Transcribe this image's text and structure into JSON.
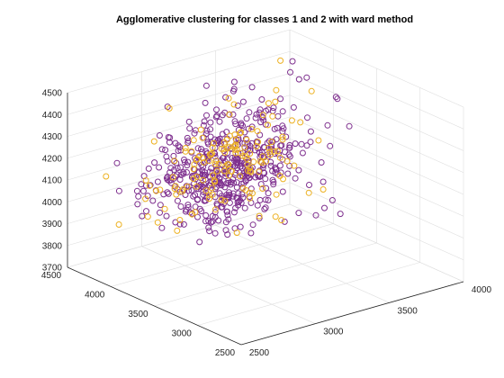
{
  "chart_data": {
    "type": "scatter",
    "dimensions": 3,
    "title": "Agglomerative clustering for classes 1 and 2 with ward method",
    "xlabel": "",
    "ylabel": "",
    "zlabel": "",
    "xlim": [
      2500,
      4000
    ],
    "ylim": [
      2500,
      4500
    ],
    "zlim": [
      3700,
      4500
    ],
    "xticks": [
      "2500",
      "3000",
      "3500",
      "4000"
    ],
    "yticks": [
      "2500",
      "3000",
      "3500",
      "4000",
      "4500"
    ],
    "zticks": [
      "3700",
      "3800",
      "3900",
      "4000",
      "4100",
      "4200",
      "4300",
      "4400",
      "4500"
    ],
    "grid": true,
    "marker": "circle-open",
    "series": [
      {
        "color": "#7E2F8E",
        "points_generated": 520
      },
      {
        "color": "#EDB120",
        "points_generated": 150
      }
    ]
  }
}
